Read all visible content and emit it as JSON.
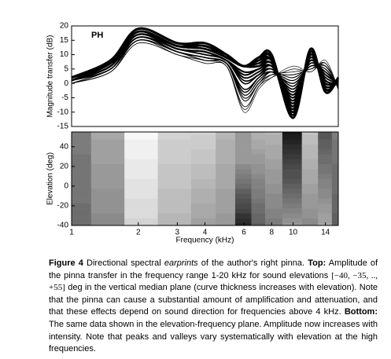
{
  "chart_data": [
    {
      "type": "line",
      "ylabel": "Magnitude transfer (dB)",
      "annotation": "PH",
      "log_x": true,
      "color": "#000000",
      "x": [
        1,
        1.5,
        2,
        3,
        4,
        5,
        6,
        7,
        8,
        10,
        12,
        14,
        16
      ],
      "ylim": [
        -15,
        20
      ],
      "yticks": [
        -15,
        -10,
        -5,
        0,
        5,
        10,
        15,
        20
      ],
      "series": [
        {
          "values": [
            0,
            4,
            14,
            10,
            7,
            6,
            -10,
            -2,
            2,
            6,
            4,
            8,
            -2
          ]
        },
        {
          "values": [
            0,
            4,
            14,
            10,
            7,
            6,
            -9,
            -1,
            2,
            5,
            4,
            7,
            -2
          ]
        },
        {
          "values": [
            0,
            4,
            15,
            10,
            8,
            6,
            -8,
            -1,
            3,
            4,
            5,
            7,
            -2
          ]
        },
        {
          "values": [
            0,
            5,
            15,
            11,
            8,
            7,
            -6,
            0,
            3,
            3,
            5,
            6,
            -1
          ]
        },
        {
          "values": [
            0,
            5,
            15,
            11,
            8,
            7,
            -5,
            0,
            4,
            2,
            6,
            6,
            -1
          ]
        },
        {
          "values": [
            1,
            5,
            15,
            11,
            9,
            7,
            -4,
            1,
            4,
            1,
            6,
            5,
            -1
          ]
        },
        {
          "values": [
            1,
            5,
            16,
            11,
            9,
            7,
            -3,
            2,
            4,
            0,
            6,
            4,
            -1
          ]
        },
        {
          "values": [
            1,
            5,
            16,
            11,
            9,
            7,
            -2,
            2,
            5,
            -1,
            7,
            4,
            0
          ]
        },
        {
          "values": [
            1,
            6,
            16,
            12,
            10,
            8,
            0,
            3,
            5,
            -2,
            7,
            3,
            0
          ]
        },
        {
          "values": [
            1,
            6,
            16,
            12,
            10,
            8,
            1,
            3,
            6,
            -3,
            8,
            3,
            0
          ]
        },
        {
          "values": [
            1,
            6,
            17,
            12,
            11,
            8,
            2,
            4,
            6,
            -4,
            8,
            2,
            0
          ]
        },
        {
          "values": [
            1,
            6,
            17,
            12,
            11,
            8,
            3,
            5,
            6,
            -4,
            8,
            1,
            0
          ]
        },
        {
          "values": [
            1,
            6,
            17,
            12,
            11,
            8,
            4,
            5,
            7,
            -5,
            9,
            1,
            0
          ]
        },
        {
          "values": [
            1,
            7,
            17,
            13,
            12,
            9,
            6,
            6,
            7,
            -6,
            9,
            0,
            1
          ]
        },
        {
          "values": [
            1,
            7,
            18,
            13,
            12,
            9,
            6,
            6,
            8,
            -7,
            10,
            0,
            1
          ]
        },
        {
          "values": [
            2,
            7,
            18,
            13,
            12,
            9,
            6,
            7,
            8,
            -8,
            10,
            -1,
            1
          ]
        },
        {
          "values": [
            2,
            7,
            18,
            13,
            13,
            9,
            6,
            8,
            8,
            -9,
            10,
            -2,
            1
          ]
        },
        {
          "values": [
            2,
            7,
            18,
            13,
            13,
            9,
            6,
            8,
            9,
            -10,
            11,
            -2,
            1
          ]
        },
        {
          "values": [
            2,
            8,
            19,
            14,
            13,
            10,
            6,
            9,
            9,
            -11,
            11,
            -3,
            2
          ]
        },
        {
          "values": [
            2,
            8,
            19,
            14,
            14,
            10,
            6,
            9,
            10,
            -12,
            12,
            -3,
            2
          ]
        }
      ]
    },
    {
      "type": "heatmap",
      "xlabel": "Frequency (kHz)",
      "ylabel": "Elevation (deg)",
      "xlim": [
        1,
        16
      ],
      "xticks": [
        1,
        2,
        3,
        4,
        6,
        8,
        10,
        14
      ],
      "y": [
        -40,
        -35,
        -30,
        -25,
        -20,
        -15,
        -10,
        -5,
        0,
        5,
        10,
        15,
        20,
        25,
        30,
        35,
        40,
        45,
        50,
        55
      ],
      "ylim": [
        -40,
        55
      ],
      "yticks": [
        -40,
        -20,
        0,
        20,
        40
      ],
      "low_color": "#000000",
      "high_color": "#ffffff"
    }
  ],
  "caption": [
    {
      "text": "Figure 4",
      "style": "b"
    },
    {
      "text": " Directional spectral ",
      "style": "n"
    },
    {
      "text": "earprints",
      "style": "i"
    },
    {
      "text": " of the author's right pinna. ",
      "style": "n"
    },
    {
      "text": "Top:",
      "style": "b"
    },
    {
      "text": " Amplitude of the pinna transfer in the frequency range 1-20 kHz for sound elevations ",
      "style": "n"
    },
    {
      "text": "[−40, −35, .., +55]",
      "style": "m"
    },
    {
      "text": " deg in the vertical median plane (curve thickness increases with elevation). Note that the pinna can cause a substantial amount of amplification and attenuation, and that these effects depend on sound direction for frequencies above 4 kHz. ",
      "style": "n"
    },
    {
      "text": "Bottom:",
      "style": "b"
    },
    {
      "text": " The same data shown in the elevation-frequency plane. Amplitude now increases with intensity. Note that peaks and valleys vary systematically with elevation at the high frequencies.",
      "style": "n"
    }
  ]
}
